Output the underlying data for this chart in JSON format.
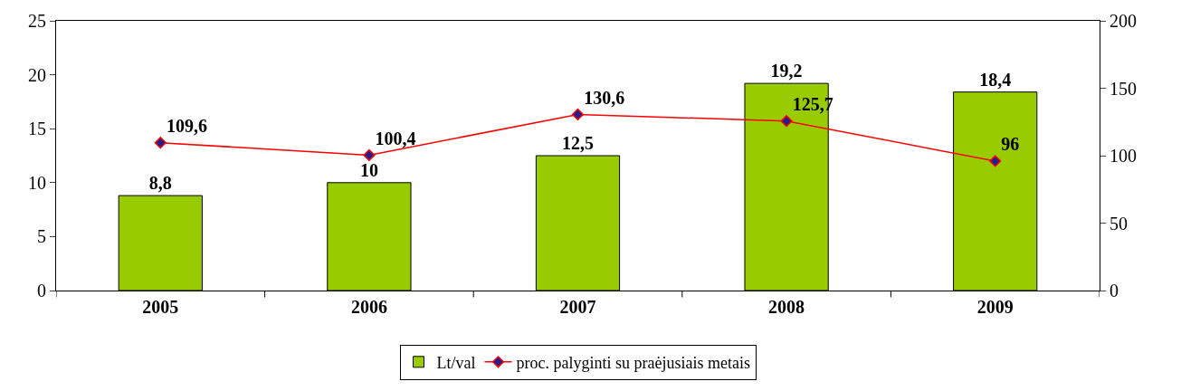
{
  "chart_data": {
    "type": "bar",
    "categories": [
      "2005",
      "2006",
      "2007",
      "2008",
      "2009"
    ],
    "series": [
      {
        "name": "Lt/val",
        "color": "#99cc00",
        "values": [
          8.8,
          10,
          12.5,
          19.2,
          18.4
        ],
        "value_labels": [
          "8,8",
          "10",
          "12,5",
          "19,2",
          "18,4"
        ]
      },
      {
        "name": "proc. palyginti su praėjusiais metais",
        "type": "line",
        "axis": "y2",
        "color": "#ff0000",
        "marker": "diamond",
        "values": [
          109.6,
          100.4,
          130.6,
          125.7,
          96
        ],
        "value_labels": [
          "109,6",
          "100,4",
          "130,6",
          "125,7",
          "96"
        ]
      }
    ],
    "ylim": [
      0,
      25
    ],
    "yticks": [
      0,
      5,
      10,
      15,
      20,
      25
    ],
    "y2lim": [
      0,
      200
    ],
    "y2ticks": [
      0,
      50,
      100,
      150,
      200
    ],
    "legend": "bottom"
  }
}
